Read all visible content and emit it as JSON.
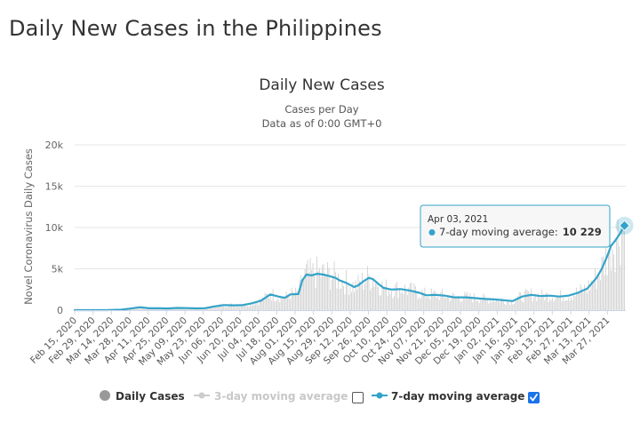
{
  "page": {
    "title": "Daily New Cases in the Philippines"
  },
  "chart_data": {
    "type": "line",
    "title": "Daily New Cases",
    "subtitle_line1": "Cases per Day",
    "subtitle_line2": "Data as of 0:00 GMT+0",
    "ylabel": "Novel Coronavirus Daily Cases",
    "ylim": [
      0,
      20000
    ],
    "y_ticks": [
      {
        "value": 0,
        "label": "0"
      },
      {
        "value": 5000,
        "label": "5k"
      },
      {
        "value": 10000,
        "label": "10k"
      },
      {
        "value": 15000,
        "label": "15k"
      },
      {
        "value": 20000,
        "label": "20k"
      }
    ],
    "x_start": "2020-02-15",
    "x_end": "2021-04-04",
    "x_tick_labels": [
      "Feb 15, 2020",
      "Feb 29, 2020",
      "Mar 14, 2020",
      "Mar 28, 2020",
      "Apr 11, 2020",
      "Apr 25, 2020",
      "May 09, 2020",
      "May 23, 2020",
      "Jun 06, 2020",
      "Jun 20, 2020",
      "Jul 04, 2020",
      "Jul 18, 2020",
      "Aug 01, 2020",
      "Aug 15, 2020",
      "Aug 29, 2020",
      "Sep 12, 2020",
      "Sep 26, 2020",
      "Oct 10, 2020",
      "Oct 24, 2020",
      "Nov 07, 2020",
      "Nov 21, 2020",
      "Dec 05, 2020",
      "Dec 19, 2020",
      "Jan 02, 2021",
      "Jan 16, 2021",
      "Jan 30, 2021",
      "Feb 13, 2021",
      "Feb 27, 2021",
      "Mar 13, 2021",
      "Mar 27, 2021"
    ],
    "series": [
      {
        "name": "7-day moving average",
        "color": "#33a3c9",
        "points": [
          [
            "2020-02-15",
            0
          ],
          [
            "2020-03-10",
            5
          ],
          [
            "2020-03-21",
            50
          ],
          [
            "2020-03-28",
            190
          ],
          [
            "2020-04-04",
            350
          ],
          [
            "2020-04-11",
            230
          ],
          [
            "2020-04-18",
            230
          ],
          [
            "2020-04-25",
            200
          ],
          [
            "2020-05-02",
            270
          ],
          [
            "2020-05-09",
            250
          ],
          [
            "2020-05-16",
            210
          ],
          [
            "2020-05-23",
            240
          ],
          [
            "2020-05-30",
            450
          ],
          [
            "2020-06-06",
            610
          ],
          [
            "2020-06-13",
            580
          ],
          [
            "2020-06-20",
            600
          ],
          [
            "2020-06-27",
            830
          ],
          [
            "2020-07-04",
            1150
          ],
          [
            "2020-07-11",
            1900
          ],
          [
            "2020-07-18",
            1600
          ],
          [
            "2020-07-22",
            1500
          ],
          [
            "2020-07-26",
            1900
          ],
          [
            "2020-08-01",
            1950
          ],
          [
            "2020-08-04",
            3600
          ],
          [
            "2020-08-07",
            4300
          ],
          [
            "2020-08-11",
            4200
          ],
          [
            "2020-08-15",
            4400
          ],
          [
            "2020-08-20",
            4300
          ],
          [
            "2020-08-25",
            4100
          ],
          [
            "2020-08-29",
            3900
          ],
          [
            "2020-09-01",
            3600
          ],
          [
            "2020-09-06",
            3300
          ],
          [
            "2020-09-12",
            2800
          ],
          [
            "2020-09-15",
            3000
          ],
          [
            "2020-09-19",
            3500
          ],
          [
            "2020-09-23",
            3900
          ],
          [
            "2020-09-26",
            3750
          ],
          [
            "2020-09-30",
            3200
          ],
          [
            "2020-10-04",
            2700
          ],
          [
            "2020-10-10",
            2500
          ],
          [
            "2020-10-17",
            2550
          ],
          [
            "2020-10-24",
            2350
          ],
          [
            "2020-10-31",
            2100
          ],
          [
            "2020-11-05",
            1800
          ],
          [
            "2020-11-12",
            1850
          ],
          [
            "2020-11-19",
            1750
          ],
          [
            "2020-11-26",
            1550
          ],
          [
            "2020-12-05",
            1550
          ],
          [
            "2020-12-12",
            1450
          ],
          [
            "2020-12-19",
            1350
          ],
          [
            "2020-12-26",
            1300
          ],
          [
            "2021-01-02",
            1200
          ],
          [
            "2021-01-09",
            1100
          ],
          [
            "2021-01-16",
            1650
          ],
          [
            "2021-01-23",
            1850
          ],
          [
            "2021-01-30",
            1700
          ],
          [
            "2021-02-06",
            1750
          ],
          [
            "2021-02-13",
            1650
          ],
          [
            "2021-02-20",
            1750
          ],
          [
            "2021-02-27",
            2100
          ],
          [
            "2021-03-06",
            2600
          ],
          [
            "2021-03-13",
            3900
          ],
          [
            "2021-03-17",
            5000
          ],
          [
            "2021-03-21",
            6500
          ],
          [
            "2021-03-24",
            7800
          ],
          [
            "2021-03-27",
            8400
          ],
          [
            "2021-03-30",
            9100
          ],
          [
            "2021-04-03",
            10229
          ]
        ]
      }
    ],
    "legend": {
      "placement": "bottom",
      "items": [
        {
          "label": "Daily Cases",
          "color": "#999999",
          "checkbox": false,
          "active": true
        },
        {
          "label": "3-day moving average",
          "color": "#c8c8c8",
          "checkbox": true,
          "checked": false,
          "active": false
        },
        {
          "label": "7-day moving average",
          "color": "#33a3c9",
          "checkbox": true,
          "checked": true,
          "active": true
        }
      ]
    },
    "tooltip": {
      "date": "Apr 03, 2021",
      "series": "7-day moving average:",
      "value": "10 229"
    },
    "colors": {
      "series": "#33a3c9",
      "daily_bars": "#d5d5d5",
      "grid": "#e6e6e6",
      "checkbox_checked": "#1a73e8"
    }
  }
}
